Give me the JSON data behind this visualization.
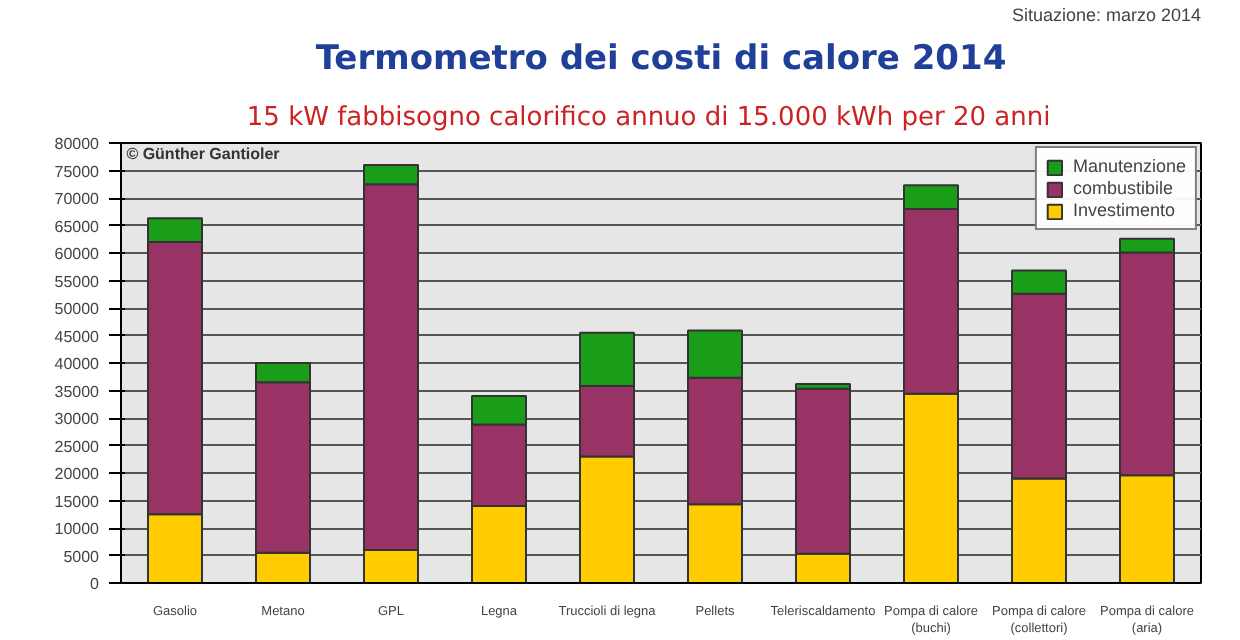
{
  "chart_data": {
    "type": "bar",
    "stacked": true,
    "title": "Termometro dei costi di calore 2014",
    "subtitle": "15 kW    fabbisogno calorifico annuo di 15.000 kWh per 20 anni",
    "annotations": [
      "Situazione: marzo 2014",
      "© Günther Gantioler"
    ],
    "categories": [
      "Gasolio",
      "Metano",
      "GPL",
      "Legna",
      "Truccioli di legna",
      "Pellets",
      "Teleriscaldamento",
      "Pompa di calore\n(buchi)",
      "Pompa di calore\n(collettori)",
      "Pompa di calore\n(aria)"
    ],
    "series": [
      {
        "name": "Investimento",
        "color": "#ffcc00",
        "values": [
          12500,
          5500,
          6000,
          14000,
          23000,
          14300,
          5300,
          34400,
          19000,
          19600
        ]
      },
      {
        "name": "combustibile",
        "color": "#993366",
        "values": [
          49500,
          31000,
          66500,
          14800,
          12800,
          23000,
          30000,
          33600,
          33600,
          40500
        ]
      },
      {
        "name": "Manutenzione",
        "color": "#1a9e1a",
        "values": [
          4300,
          3500,
          3500,
          5200,
          9700,
          8600,
          900,
          4300,
          4200,
          2500
        ]
      }
    ],
    "ylim": [
      0,
      80000
    ],
    "yticks": [
      0,
      5000,
      10000,
      15000,
      20000,
      25000,
      30000,
      35000,
      40000,
      45000,
      50000,
      55000,
      60000,
      65000,
      70000,
      75000,
      80000
    ],
    "grid": "y",
    "legend": "top right"
  }
}
